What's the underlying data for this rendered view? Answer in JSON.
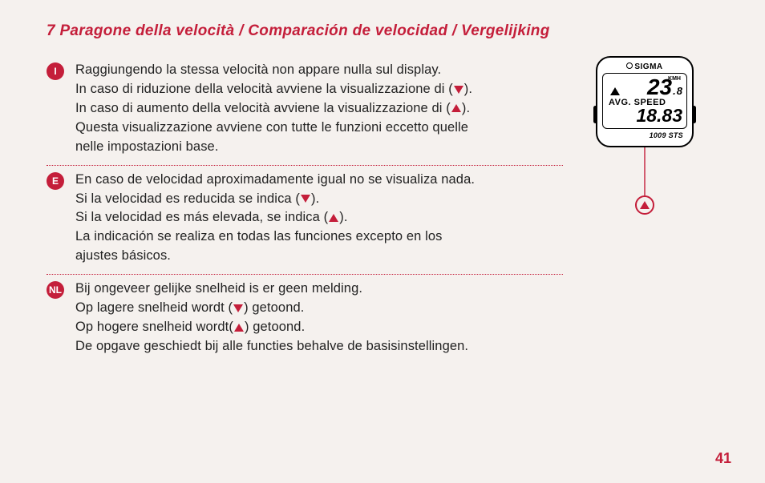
{
  "title": "7 Paragone della velocità / Comparación de velocidad / Vergelijking",
  "langs": [
    {
      "badge": "I",
      "lines": [
        {
          "pre": "Raggiungendo la stessa velocità non appare nulla sul display."
        },
        {
          "pre": "In caso di riduzione della velocità avviene la visualizzazione di (",
          "tri": "down",
          "post": ")."
        },
        {
          "pre": "In caso di aumento della velocità avviene la visualizzazione di (",
          "tri": "up",
          "post": ")."
        },
        {
          "pre": "Questa visualizzazione avviene con tutte le funzioni eccetto quelle"
        },
        {
          "pre": "nelle impostazioni base."
        }
      ]
    },
    {
      "badge": "E",
      "lines": [
        {
          "pre": "En caso de velocidad aproximadamente igual no se visualiza nada."
        },
        {
          "pre": "Si la velocidad es reducida se indica (",
          "tri": "down",
          "post": ")."
        },
        {
          "pre": "Si la velocidad es más elevada, se indica (",
          "tri": "up",
          "post": ")."
        },
        {
          "pre": "La indicación se realiza en todas las funciones excepto en los"
        },
        {
          "pre": "ajustes básicos."
        }
      ]
    },
    {
      "badge": "NL",
      "lines": [
        {
          "pre": "Bij ongeveer gelijke snelheid is er geen melding."
        },
        {
          "pre": "Op lagere snelheid wordt (",
          "tri": "down",
          "post": ") getoond."
        },
        {
          "pre": "Op hogere snelheid wordt(",
          "tri": "up",
          "post": ") getoond."
        },
        {
          "pre": "De opgave geschiedt bij alle functies behalve de basisinstellingen."
        }
      ]
    }
  ],
  "device": {
    "brand": "SIGMA",
    "speed_main": "23",
    "speed_dec": "8",
    "unit": "KMH",
    "label": "AVG. SPEED",
    "avg": "18.83",
    "model": "1009 STS"
  },
  "page_num": "41",
  "colors": {
    "accent": "#c41e3a",
    "bg": "#f5f1ee",
    "text": "#222"
  }
}
